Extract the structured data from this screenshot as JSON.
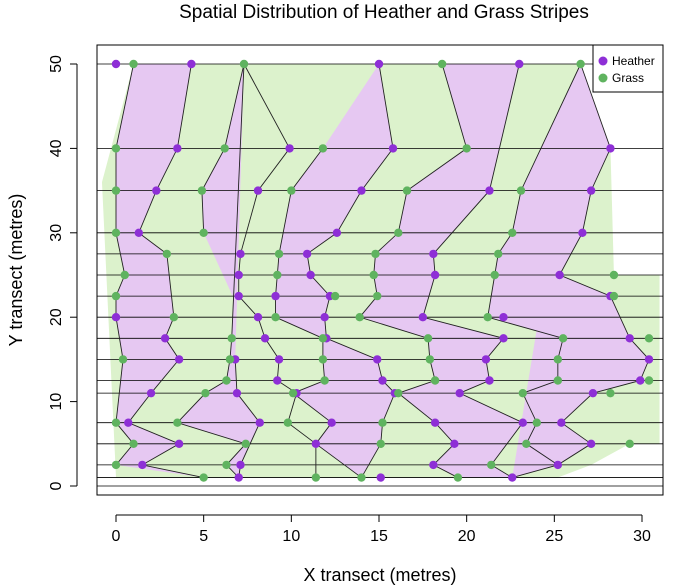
{
  "chart_data": {
    "type": "scatter",
    "title": "Spatial Distribution of Heather and Grass Stripes",
    "xlabel": "X transect (metres)",
    "ylabel": "Y transect (metres)",
    "xlim": [
      -0.8,
      31.0
    ],
    "ylim": [
      -1.0,
      52.0
    ],
    "x_ticks": [
      0,
      5,
      10,
      15,
      20,
      25,
      30
    ],
    "y_ticks": [
      0,
      10,
      20,
      30,
      40,
      50
    ],
    "transect_y": [
      0,
      1,
      2.5,
      5,
      7.5,
      11,
      12.5,
      15,
      17.5,
      20,
      22.5,
      25,
      27.5,
      30,
      35,
      40,
      50
    ],
    "legend": {
      "position": "top-right",
      "entries": [
        {
          "name": "Heather",
          "color": "#8e2fd6"
        },
        {
          "name": "Grass",
          "color": "#5fb35f"
        }
      ]
    },
    "colors": {
      "heather_fill": "#e6c8f2",
      "grass_fill": "#dcf2cc",
      "heather_point": "#8e2fd6",
      "grass_point": "#5fb35f"
    },
    "series": [
      {
        "name": "Heather",
        "points": [
          [
            0,
            50
          ],
          [
            4.3,
            50
          ],
          [
            15,
            50
          ],
          [
            23,
            50
          ],
          [
            3.5,
            40
          ],
          [
            9.9,
            40
          ],
          [
            15.8,
            40
          ],
          [
            28.2,
            40
          ],
          [
            2.3,
            35
          ],
          [
            8.1,
            35
          ],
          [
            14,
            35
          ],
          [
            21.3,
            35
          ],
          [
            27.1,
            35
          ],
          [
            1.3,
            30
          ],
          [
            12.6,
            30
          ],
          [
            26.6,
            30
          ],
          [
            7.1,
            27.5
          ],
          [
            10.9,
            27.5
          ],
          [
            18.1,
            27.5
          ],
          [
            7,
            25
          ],
          [
            11.1,
            25
          ],
          [
            18.2,
            25
          ],
          [
            25.3,
            25
          ],
          [
            7,
            22.5
          ],
          [
            9.1,
            22.5
          ],
          [
            12.2,
            22.5
          ],
          [
            28.2,
            22.5
          ],
          [
            0,
            20
          ],
          [
            8.1,
            20
          ],
          [
            11.9,
            20
          ],
          [
            17.5,
            20
          ],
          [
            22.1,
            20
          ],
          [
            2.8,
            17.5
          ],
          [
            8.5,
            17.5
          ],
          [
            12,
            17.5
          ],
          [
            22.1,
            17.5
          ],
          [
            29.3,
            17.5
          ],
          [
            3.6,
            15
          ],
          [
            6.8,
            15
          ],
          [
            9.3,
            15
          ],
          [
            14.9,
            15
          ],
          [
            21.1,
            15
          ],
          [
            30.4,
            15
          ],
          [
            9.2,
            12.5
          ],
          [
            15.2,
            12.5
          ],
          [
            21.3,
            12.5
          ],
          [
            29.9,
            12.5
          ],
          [
            2,
            11
          ],
          [
            6.9,
            11
          ],
          [
            10.3,
            11
          ],
          [
            15.9,
            11
          ],
          [
            19.6,
            11
          ],
          [
            27.2,
            11
          ],
          [
            0.7,
            7.5
          ],
          [
            8.2,
            7.5
          ],
          [
            12.3,
            7.5
          ],
          [
            18.2,
            7.5
          ],
          [
            23.2,
            7.5
          ],
          [
            25.4,
            7.5
          ],
          [
            3.6,
            5
          ],
          [
            11.4,
            5
          ],
          [
            19.3,
            5
          ],
          [
            27.1,
            5
          ],
          [
            1.5,
            2.5
          ],
          [
            7.1,
            2.5
          ],
          [
            18.1,
            2.5
          ],
          [
            25.2,
            2.5
          ],
          [
            7,
            1
          ],
          [
            15.1,
            1
          ],
          [
            22.6,
            1
          ]
        ]
      },
      {
        "name": "Grass",
        "points": [
          [
            1,
            50
          ],
          [
            7.3,
            50
          ],
          [
            18.6,
            50
          ],
          [
            26.5,
            50
          ],
          [
            0,
            40
          ],
          [
            6.2,
            40
          ],
          [
            11.8,
            40
          ],
          [
            20,
            40
          ],
          [
            0,
            35
          ],
          [
            4.9,
            35
          ],
          [
            10,
            35
          ],
          [
            16.6,
            35
          ],
          [
            23.1,
            35
          ],
          [
            0,
            30
          ],
          [
            5,
            30
          ],
          [
            16.1,
            30
          ],
          [
            22.6,
            30
          ],
          [
            2.9,
            27.5
          ],
          [
            9.3,
            27.5
          ],
          [
            14.8,
            27.5
          ],
          [
            21.8,
            27.5
          ],
          [
            0.5,
            25
          ],
          [
            9.2,
            25
          ],
          [
            14.7,
            25
          ],
          [
            21.6,
            25
          ],
          [
            28.4,
            25
          ],
          [
            0,
            22.5
          ],
          [
            12.5,
            22.5
          ],
          [
            14.9,
            22.5
          ],
          [
            28.4,
            22.5
          ],
          [
            3.3,
            20
          ],
          [
            9.1,
            20
          ],
          [
            13.9,
            20
          ],
          [
            21.2,
            20
          ],
          [
            6.6,
            17.5
          ],
          [
            11.8,
            17.5
          ],
          [
            17.8,
            17.5
          ],
          [
            25.5,
            17.5
          ],
          [
            30.4,
            17.5
          ],
          [
            0.4,
            15
          ],
          [
            6.5,
            15
          ],
          [
            11.8,
            15
          ],
          [
            17.9,
            15
          ],
          [
            25.2,
            15
          ],
          [
            6.3,
            12.5
          ],
          [
            11.9,
            12.5
          ],
          [
            18.2,
            12.5
          ],
          [
            25.2,
            12.5
          ],
          [
            30.4,
            12.5
          ],
          [
            5.1,
            11
          ],
          [
            10.1,
            11
          ],
          [
            16.1,
            11
          ],
          [
            23.2,
            11
          ],
          [
            28.2,
            11
          ],
          [
            0,
            7.5
          ],
          [
            3.5,
            7.5
          ],
          [
            9.8,
            7.5
          ],
          [
            15.2,
            7.5
          ],
          [
            24,
            7.5
          ],
          [
            1,
            5
          ],
          [
            7.4,
            5
          ],
          [
            15.1,
            5
          ],
          [
            23.4,
            5
          ],
          [
            29.3,
            5
          ],
          [
            0,
            2.5
          ],
          [
            6.3,
            2.5
          ],
          [
            21.4,
            2.5
          ],
          [
            5,
            1
          ],
          [
            11.4,
            1
          ],
          [
            14,
            1
          ],
          [
            19.5,
            1
          ]
        ]
      }
    ],
    "stripes": [
      {
        "type": "grass",
        "path": [
          [
            1,
            50
          ],
          [
            0,
            40
          ],
          [
            0,
            35
          ],
          [
            0,
            30
          ],
          [
            0.5,
            25
          ],
          [
            0,
            22.5
          ],
          [
            0,
            20
          ],
          [
            0.4,
            15
          ],
          [
            0,
            7.5
          ],
          [
            1,
            5
          ],
          [
            0,
            2.5
          ]
        ]
      },
      {
        "type": "heather",
        "path": [
          [
            4.3,
            50
          ],
          [
            3.5,
            40
          ],
          [
            2.3,
            35
          ],
          [
            1.3,
            30
          ],
          [
            2.9,
            27.5
          ],
          [
            3.3,
            20
          ],
          [
            2.8,
            17.5
          ],
          [
            3.6,
            15
          ],
          [
            2,
            11
          ],
          [
            0.7,
            7.5
          ],
          [
            3.6,
            5
          ],
          [
            1.5,
            2.5
          ],
          [
            5,
            1
          ]
        ]
      },
      {
        "type": "grass",
        "path": [
          [
            7.3,
            50
          ],
          [
            6.2,
            40
          ],
          [
            4.9,
            35
          ],
          [
            5,
            30
          ]
        ]
      },
      {
        "type": "heather",
        "path": [
          [
            7.3,
            50
          ],
          [
            9.9,
            40
          ],
          [
            8.1,
            35
          ],
          [
            7.1,
            27.5
          ],
          [
            7,
            25
          ],
          [
            7,
            22.5
          ],
          [
            8.1,
            20
          ],
          [
            8.5,
            17.5
          ],
          [
            9.3,
            15
          ],
          [
            9.2,
            12.5
          ],
          [
            10.3,
            11
          ],
          [
            9.8,
            7.5
          ],
          [
            11.4,
            5
          ],
          [
            11.4,
            1
          ]
        ]
      },
      {
        "type": "grass",
        "path": [
          [
            7.3,
            50
          ],
          [
            6.6,
            17.5
          ],
          [
            6.5,
            15
          ],
          [
            6.3,
            12.5
          ],
          [
            5.1,
            11
          ],
          [
            3.5,
            7.5
          ],
          [
            7.4,
            5
          ],
          [
            6.3,
            2.5
          ],
          [
            7,
            1
          ]
        ]
      },
      {
        "type": "heather",
        "path": [
          [
            6.8,
            15
          ],
          [
            6.9,
            11
          ],
          [
            8.2,
            7.5
          ],
          [
            7.1,
            2.5
          ],
          [
            7,
            1
          ]
        ]
      },
      {
        "type": "grass",
        "path": [
          [
            11.8,
            40
          ],
          [
            10,
            35
          ],
          [
            9.3,
            27.5
          ],
          [
            9.2,
            25
          ],
          [
            9.1,
            22.5
          ],
          [
            9.1,
            20
          ],
          [
            11.8,
            17.5
          ],
          [
            11.8,
            15
          ],
          [
            11.9,
            12.5
          ],
          [
            10.1,
            11
          ],
          [
            12.3,
            7.5
          ],
          [
            11.4,
            5
          ],
          [
            14,
            1
          ]
        ]
      },
      {
        "type": "heather",
        "path": [
          [
            15,
            50
          ],
          [
            15.8,
            40
          ],
          [
            14,
            35
          ],
          [
            12.6,
            30
          ],
          [
            10.9,
            27.5
          ],
          [
            11.1,
            25
          ],
          [
            12.2,
            22.5
          ],
          [
            11.9,
            20
          ],
          [
            12,
            17.5
          ],
          [
            14.9,
            15
          ],
          [
            15.2,
            12.5
          ],
          [
            15.9,
            11
          ],
          [
            15.2,
            7.5
          ],
          [
            15.1,
            5
          ],
          [
            14,
            1
          ]
        ]
      },
      {
        "type": "grass",
        "path": [
          [
            18.6,
            50
          ],
          [
            20,
            40
          ],
          [
            16.6,
            35
          ],
          [
            16.1,
            30
          ],
          [
            14.8,
            27.5
          ],
          [
            14.7,
            25
          ],
          [
            14.9,
            22.5
          ],
          [
            13.9,
            20
          ],
          [
            17.8,
            17.5
          ],
          [
            17.9,
            15
          ],
          [
            18.2,
            12.5
          ],
          [
            16.1,
            11
          ],
          [
            18.2,
            7.5
          ],
          [
            19.3,
            5
          ],
          [
            18.1,
            2.5
          ],
          [
            19.5,
            1
          ]
        ]
      },
      {
        "type": "heather",
        "path": [
          [
            23,
            50
          ],
          [
            21.3,
            35
          ],
          [
            18.1,
            27.5
          ],
          [
            18.2,
            25
          ],
          [
            17.5,
            20
          ],
          [
            22.1,
            17.5
          ],
          [
            21.1,
            15
          ],
          [
            21.3,
            12.5
          ],
          [
            19.6,
            11
          ],
          [
            23.2,
            7.5
          ],
          [
            21.4,
            2.5
          ],
          [
            22.6,
            1
          ]
        ]
      },
      {
        "type": "grass",
        "path": [
          [
            26.5,
            50
          ],
          [
            23.1,
            35
          ],
          [
            22.6,
            30
          ],
          [
            21.8,
            27.5
          ],
          [
            21.6,
            25
          ],
          [
            21.2,
            20
          ],
          [
            25.5,
            17.5
          ],
          [
            25.2,
            15
          ],
          [
            25.2,
            12.5
          ],
          [
            23.2,
            11
          ],
          [
            24,
            7.5
          ],
          [
            23.4,
            5
          ],
          [
            25.2,
            2.5
          ]
        ]
      },
      {
        "type": "heather",
        "path": [
          [
            26.5,
            50
          ],
          [
            28.2,
            40
          ],
          [
            27.1,
            35
          ],
          [
            26.6,
            30
          ],
          [
            25.3,
            25
          ],
          [
            28.2,
            22.5
          ],
          [
            29.3,
            17.5
          ],
          [
            30.4,
            15
          ],
          [
            29.9,
            12.5
          ],
          [
            27.2,
            11
          ],
          [
            25.4,
            7.5
          ],
          [
            27.1,
            5
          ],
          [
            25.2,
            2.5
          ],
          [
            22.6,
            1
          ]
        ]
      }
    ]
  }
}
